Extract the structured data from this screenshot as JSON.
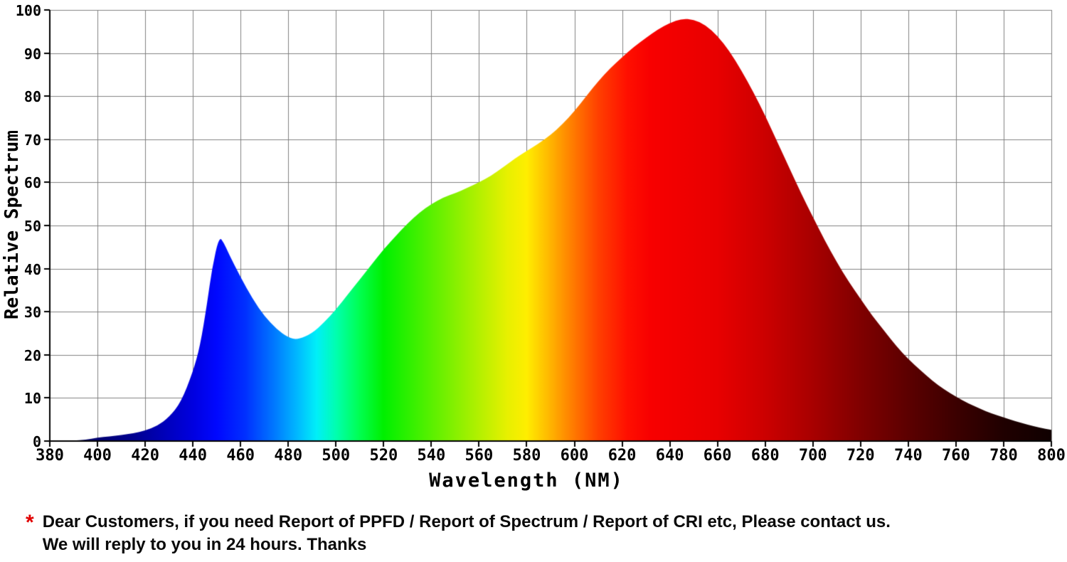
{
  "chart_data": {
    "type": "area",
    "title": "",
    "xlabel": "Wavelength (NM)",
    "ylabel": "Relative Spectrum",
    "xlim": [
      380,
      800
    ],
    "ylim": [
      0,
      100
    ],
    "grid": true,
    "grid_color": "#808080",
    "axis_color": "#000000",
    "legend": "none",
    "x_ticks": [
      380,
      400,
      420,
      440,
      460,
      480,
      500,
      520,
      540,
      560,
      580,
      600,
      620,
      640,
      660,
      680,
      700,
      720,
      740,
      760,
      780,
      800
    ],
    "y_ticks": [
      0,
      10,
      20,
      30,
      40,
      50,
      60,
      70,
      80,
      90,
      100
    ],
    "series": [
      {
        "name": "relative-spectrum",
        "points": [
          [
            380,
            0
          ],
          [
            385,
            0
          ],
          [
            390,
            0.1
          ],
          [
            395,
            0.3
          ],
          [
            400,
            0.8
          ],
          [
            405,
            1.1
          ],
          [
            410,
            1.4
          ],
          [
            415,
            1.8
          ],
          [
            420,
            2.4
          ],
          [
            425,
            3.5
          ],
          [
            430,
            5.5
          ],
          [
            435,
            9
          ],
          [
            440,
            16
          ],
          [
            443,
            22
          ],
          [
            446,
            32
          ],
          [
            448,
            40
          ],
          [
            451,
            47.5
          ],
          [
            453,
            46
          ],
          [
            455,
            43.5
          ],
          [
            460,
            38
          ],
          [
            465,
            33
          ],
          [
            470,
            29
          ],
          [
            475,
            26
          ],
          [
            480,
            24
          ],
          [
            484,
            23.5
          ],
          [
            490,
            25
          ],
          [
            495,
            27.5
          ],
          [
            500,
            30.5
          ],
          [
            505,
            34
          ],
          [
            510,
            37.5
          ],
          [
            515,
            41
          ],
          [
            520,
            44.5
          ],
          [
            525,
            47.5
          ],
          [
            530,
            50.5
          ],
          [
            535,
            53
          ],
          [
            540,
            55
          ],
          [
            545,
            56.5
          ],
          [
            550,
            57.5
          ],
          [
            555,
            58.7
          ],
          [
            560,
            60
          ],
          [
            565,
            61.5
          ],
          [
            570,
            63.5
          ],
          [
            575,
            65.5
          ],
          [
            580,
            67.3
          ],
          [
            585,
            69
          ],
          [
            590,
            71
          ],
          [
            595,
            73.5
          ],
          [
            600,
            76.5
          ],
          [
            605,
            80
          ],
          [
            610,
            83.5
          ],
          [
            615,
            86.5
          ],
          [
            620,
            89
          ],
          [
            625,
            91.5
          ],
          [
            630,
            93.5
          ],
          [
            635,
            95.5
          ],
          [
            640,
            97
          ],
          [
            645,
            98
          ],
          [
            650,
            97.8
          ],
          [
            655,
            96.5
          ],
          [
            660,
            94
          ],
          [
            665,
            90.5
          ],
          [
            670,
            86
          ],
          [
            675,
            81
          ],
          [
            680,
            75.5
          ],
          [
            685,
            69.5
          ],
          [
            690,
            63.5
          ],
          [
            695,
            57.5
          ],
          [
            700,
            52
          ],
          [
            705,
            46.5
          ],
          [
            710,
            41.5
          ],
          [
            715,
            37
          ],
          [
            720,
            33
          ],
          [
            725,
            29
          ],
          [
            730,
            25.5
          ],
          [
            735,
            22
          ],
          [
            740,
            19
          ],
          [
            745,
            16.5
          ],
          [
            750,
            14
          ],
          [
            755,
            12
          ],
          [
            760,
            10.3
          ],
          [
            765,
            8.8
          ],
          [
            770,
            7.5
          ],
          [
            775,
            6.4
          ],
          [
            780,
            5.5
          ],
          [
            785,
            4.6
          ],
          [
            790,
            3.8
          ],
          [
            795,
            3.1
          ],
          [
            800,
            2.6
          ]
        ]
      }
    ],
    "spectrum_gradient": [
      [
        380,
        "#000048"
      ],
      [
        415,
        "#000090"
      ],
      [
        440,
        "#0000e0"
      ],
      [
        450,
        "#0008ff"
      ],
      [
        462,
        "#0030ff"
      ],
      [
        474,
        "#0078ff"
      ],
      [
        484,
        "#00baff"
      ],
      [
        492,
        "#00f0f8"
      ],
      [
        500,
        "#00ffb0"
      ],
      [
        510,
        "#00ff50"
      ],
      [
        520,
        "#00f000"
      ],
      [
        545,
        "#70f000"
      ],
      [
        560,
        "#b4f000"
      ],
      [
        572,
        "#e8f000"
      ],
      [
        580,
        "#ffee00"
      ],
      [
        590,
        "#ffb400"
      ],
      [
        600,
        "#ff7800"
      ],
      [
        610,
        "#ff4000"
      ],
      [
        622,
        "#ff1000"
      ],
      [
        632,
        "#f80000"
      ],
      [
        660,
        "#e80000"
      ],
      [
        680,
        "#cc0000"
      ],
      [
        700,
        "#a80000"
      ],
      [
        720,
        "#800000"
      ],
      [
        740,
        "#5c0000"
      ],
      [
        760,
        "#3c0000"
      ],
      [
        780,
        "#200000"
      ],
      [
        800,
        "#100000"
      ]
    ]
  },
  "footnote": {
    "marker": "*",
    "marker_color": "#e10000",
    "line1": "Dear Customers, if you need Report of PPFD / Report of Spectrum / Report of CRI etc, Please contact us.",
    "line2": "We will reply to you in 24 hours. Thanks"
  }
}
